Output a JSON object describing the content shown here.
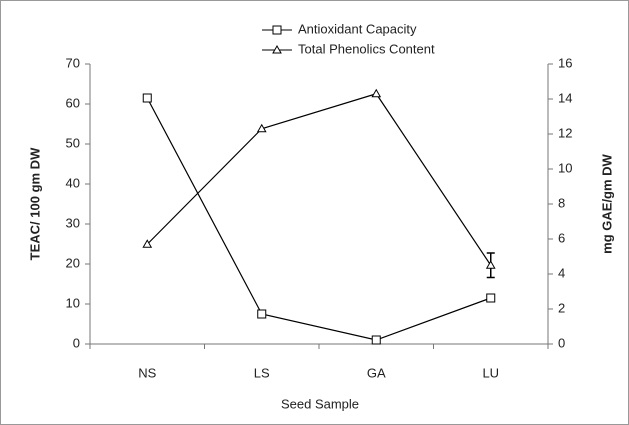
{
  "chart_data": {
    "type": "line",
    "categories": [
      "NS",
      "LS",
      "GA",
      "LU"
    ],
    "series": [
      {
        "name": "Antioxidant Capacity",
        "color": "#000000",
        "marker": "square",
        "values": [
          61.5,
          7.5,
          1,
          11.5
        ]
      },
      {
        "name": "Total Phenolics Content",
        "color": "#000000",
        "marker": "triangle",
        "axis": "y2",
        "values": [
          5.7,
          12.3,
          14.3,
          4.5
        ],
        "errors": [
          null,
          null,
          null,
          0.7
        ]
      }
    ],
    "ylabel": "TEAC/ 100 gm DW",
    "y2label": "mg GAE/gm DW",
    "xlabel": "Seed Sample",
    "ylim": [
      0,
      70
    ],
    "yticks": [
      0,
      10,
      20,
      30,
      40,
      50,
      60,
      70
    ],
    "y2lim": [
      0,
      16
    ],
    "y2ticks": [
      0,
      2,
      4,
      6,
      8,
      10,
      12,
      14,
      16
    ],
    "legend": "top"
  }
}
